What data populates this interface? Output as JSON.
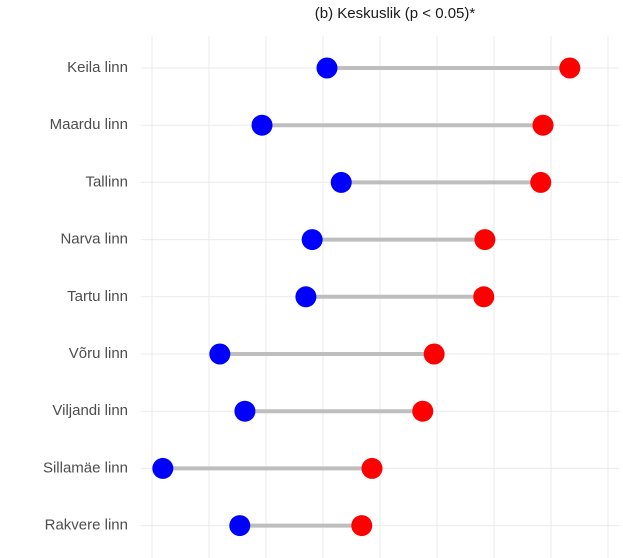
{
  "chart_data": {
    "type": "dumbbell",
    "title": "(b) Keskuslik (p < 0.05)*",
    "categories": [
      "Keila linn",
      "Maardu linn",
      "Tallinn",
      "Narva linn",
      "Tartu linn",
      "Võru linn",
      "Viljandi linn",
      "Sillamäe linn",
      "Rakvere linn"
    ],
    "series": [
      {
        "color": "#0000ff",
        "values": [
          3.07,
          1.93,
          3.32,
          2.81,
          2.7,
          1.19,
          1.63,
          0.19,
          1.54
        ]
      },
      {
        "color": "#ff0000",
        "values": [
          7.33,
          6.86,
          6.82,
          5.84,
          5.82,
          4.95,
          4.75,
          3.86,
          3.68
        ]
      }
    ],
    "segment_color": "#bebebe",
    "xlim": [
      -0.2,
      8.2
    ],
    "xticks": [
      0,
      1,
      2,
      3,
      4,
      5,
      6,
      7,
      8
    ],
    "grid": true
  }
}
